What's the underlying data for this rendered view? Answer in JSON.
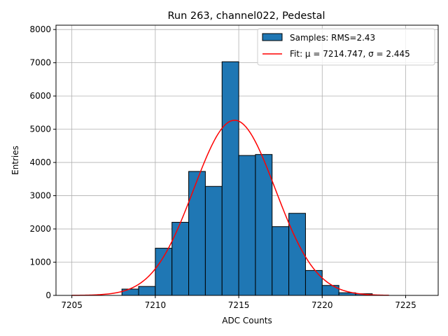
{
  "chart_data": {
    "type": "bar",
    "title": "Run 263, channel022, Pedestal",
    "xlabel": "ADC Counts",
    "ylabel": "Entries",
    "xlim": [
      7204.05,
      7226.95
    ],
    "ylim": [
      0,
      8130
    ],
    "xticks": [
      7205,
      7210,
      7215,
      7220,
      7225
    ],
    "yticks": [
      0,
      1000,
      2000,
      3000,
      4000,
      5000,
      6000,
      7000,
      8000
    ],
    "grid": true,
    "legend": "upper-right",
    "bar_color": "#1f77b4",
    "fit_color": "#ff0000",
    "series": [
      {
        "name": "Samples: RMS=2.43",
        "kind": "histogram",
        "bin_width": 1,
        "bins": [
          7205,
          7206,
          7207,
          7208,
          7209,
          7210,
          7211,
          7212,
          7213,
          7214,
          7215,
          7216,
          7217,
          7218,
          7219,
          7220,
          7221,
          7222,
          7223,
          7224,
          7225
        ],
        "values": [
          0,
          0,
          0,
          190,
          270,
          1420,
          2200,
          3730,
          3280,
          7030,
          4210,
          4240,
          2070,
          2470,
          750,
          300,
          80,
          50,
          0,
          0,
          0
        ]
      },
      {
        "name": "Fit: μ = 7214.747, σ = 2.445",
        "kind": "gaussian",
        "mu": 7214.747,
        "sigma": 2.445,
        "amplitude": 5270,
        "x_range": [
          7205,
          7224
        ]
      }
    ]
  }
}
